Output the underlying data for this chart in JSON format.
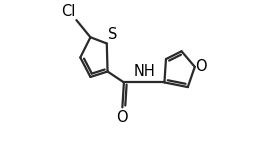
{
  "bg_color": "#ffffff",
  "line_color": "#2a2a2a",
  "line_width": 1.6,
  "figsize": [
    2.79,
    1.61
  ],
  "dpi": 100,
  "xlim": [
    0.0,
    1.0
  ],
  "ylim": [
    0.0,
    1.0
  ]
}
